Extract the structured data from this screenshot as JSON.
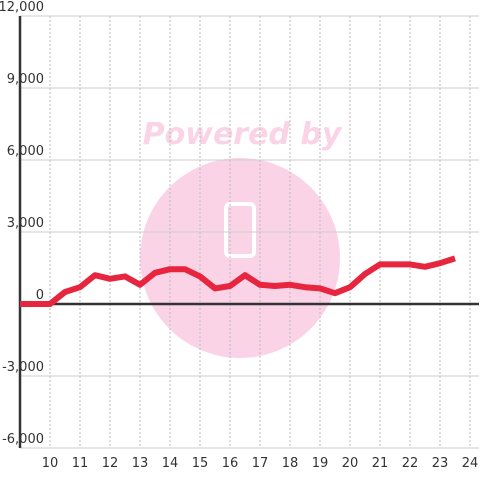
{
  "chart_data": {
    "type": "line",
    "watermark": "Powered by",
    "x": [
      9,
      9.5,
      10,
      10.5,
      11,
      11.5,
      12,
      12.5,
      13,
      13.5,
      14,
      14.5,
      15,
      15.5,
      16,
      16.5,
      17,
      17.5,
      18,
      18.5,
      19,
      19.5,
      20,
      20.5,
      21,
      21.5,
      22,
      22.5,
      23,
      23.5
    ],
    "series": [
      {
        "color": "#e8253e",
        "values": [
          0,
          0,
          0,
          500,
          700,
          1200,
          1050,
          1150,
          800,
          1300,
          1450,
          1450,
          1150,
          650,
          750,
          1200,
          800,
          750,
          800,
          700,
          650,
          450,
          700,
          1250,
          1650,
          1650,
          1650,
          1550,
          1700,
          1900
        ]
      }
    ],
    "xlim": [
      9,
      24.3
    ],
    "xticks": [
      10,
      11,
      12,
      13,
      14,
      15,
      16,
      17,
      18,
      19,
      20,
      21,
      22,
      23,
      24
    ],
    "ylim": [
      -6000,
      12000
    ],
    "yticks": [
      {
        "value": -6000,
        "label": "-6,000"
      },
      {
        "value": -3000,
        "label": "-3,000"
      },
      0,
      {
        "value": 3000,
        "label": "3,000"
      },
      {
        "value": 6000,
        "label": "6,000"
      },
      {
        "value": 9000,
        "label": "9,000"
      },
      {
        "value": 12000,
        "label": "12,000"
      }
    ],
    "grid": true
  }
}
